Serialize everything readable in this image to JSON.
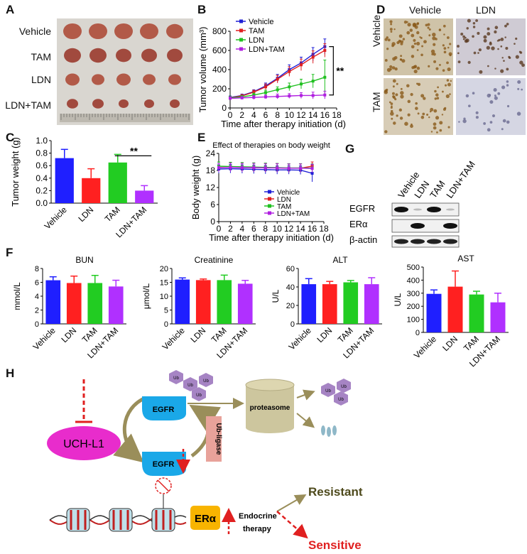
{
  "panel_letters": {
    "A": "A",
    "B": "B",
    "C": "C",
    "D": "D",
    "E": "E",
    "F": "F",
    "G": "G",
    "H": "H"
  },
  "panelA": {
    "row_labels": [
      "Vehicle",
      "TAM",
      "LDN",
      "LDN+TAM"
    ]
  },
  "panelD": {
    "col_labels": [
      "Vehicle",
      "LDN"
    ],
    "row_labels": [
      "Vehicle",
      "TAM"
    ]
  },
  "panelG": {
    "col_labels": [
      "Vehicle",
      "LDN",
      "TAM",
      "LDN+TAM"
    ],
    "row_labels": [
      "EGFR",
      "ERα",
      "β-actin"
    ]
  },
  "panelH": {
    "uch": "UCH-L1",
    "egfr_top": "EGFR",
    "egfr_bottom": "EGFR",
    "ub_ligase": "Ub-ligase",
    "proteasome": "proteasome",
    "ub": "Ub",
    "era": "ERα",
    "endocrine_1": "Endocrine",
    "endocrine_2": "therapy",
    "resistant": "Resistant",
    "sensitive": "Sensitive"
  },
  "chart_data": [
    {
      "id": "B",
      "type": "line",
      "title": "",
      "xlabel": "Time after therapy initiation (d)",
      "ylabel": "Tumor volume (mm³)",
      "xlim": [
        0,
        18
      ],
      "ylim": [
        0,
        800
      ],
      "xticks": [
        0,
        2,
        4,
        6,
        8,
        10,
        12,
        14,
        16,
        18
      ],
      "yticks": [
        0,
        200,
        400,
        600,
        800
      ],
      "x": [
        0,
        2,
        4,
        6,
        8,
        10,
        12,
        14,
        16
      ],
      "series": [
        {
          "name": "Vehicle",
          "color": "#1f1fd6",
          "values": [
            110,
            130,
            170,
            230,
            310,
            400,
            470,
            560,
            640
          ],
          "err": [
            15,
            15,
            20,
            30,
            40,
            50,
            60,
            70,
            80
          ]
        },
        {
          "name": "TAM",
          "color": "#e02020",
          "values": [
            105,
            125,
            165,
            220,
            300,
            380,
            450,
            530,
            600
          ],
          "err": [
            15,
            15,
            20,
            30,
            40,
            50,
            60,
            65,
            70
          ]
        },
        {
          "name": "LDN",
          "color": "#20c020",
          "values": [
            105,
            115,
            135,
            160,
            190,
            220,
            250,
            280,
            320
          ],
          "err": [
            15,
            15,
            20,
            25,
            30,
            40,
            50,
            70,
            180
          ]
        },
        {
          "name": "LDN+TAM",
          "color": "#b020e0",
          "values": [
            100,
            105,
            110,
            115,
            120,
            125,
            130,
            130,
            135
          ],
          "err": [
            15,
            15,
            20,
            20,
            25,
            25,
            30,
            35,
            40
          ]
        }
      ],
      "annotation": "**"
    },
    {
      "id": "C",
      "type": "bar",
      "title": "",
      "xlabel": "",
      "ylabel": "Tumor weight (g)",
      "ylim": [
        0,
        1.0
      ],
      "yticks": [
        0.0,
        0.2,
        0.4,
        0.6,
        0.8,
        1.0
      ],
      "categories": [
        "Vehicle",
        "LDN",
        "TAM",
        "LDN+TAM"
      ],
      "values": [
        0.72,
        0.4,
        0.65,
        0.2
      ],
      "err": [
        0.14,
        0.15,
        0.13,
        0.08
      ],
      "colors": [
        "#1f1fff",
        "#ff2020",
        "#22cc22",
        "#b030ff"
      ],
      "annotation": "**"
    },
    {
      "id": "E",
      "type": "line",
      "title": "Effect of therapies on body weight",
      "xlabel": "Time after therapy initiation (d)",
      "ylabel": "Body weight (g)",
      "xlim": [
        0,
        18
      ],
      "ylim": [
        0,
        24
      ],
      "xticks": [
        0,
        2,
        4,
        6,
        8,
        10,
        12,
        14,
        16,
        18
      ],
      "yticks": [
        0,
        6,
        12,
        18,
        24
      ],
      "x": [
        0,
        2,
        4,
        6,
        8,
        10,
        12,
        14,
        16
      ],
      "series": [
        {
          "name": "Vehicle",
          "color": "#1f1fd6",
          "values": [
            18.5,
            18.6,
            18.5,
            18.4,
            18.3,
            18.2,
            18.2,
            18.1,
            17.0
          ],
          "err": [
            1.5,
            1.5,
            1.5,
            1.5,
            1.5,
            1.5,
            1.5,
            1.5,
            3
          ]
        },
        {
          "name": "LDN",
          "color": "#e02020",
          "values": [
            19.0,
            19.2,
            19.1,
            19.0,
            19.0,
            18.9,
            18.8,
            18.8,
            19.5
          ],
          "err": [
            1.5,
            1.5,
            1.5,
            1.5,
            1.5,
            1.5,
            1.5,
            1.5,
            1.5
          ]
        },
        {
          "name": "TAM",
          "color": "#20c020",
          "values": [
            19.5,
            19.4,
            19.3,
            19.2,
            19.1,
            19.0,
            18.9,
            18.9,
            18.8
          ],
          "err": [
            1.5,
            1.5,
            1.5,
            1.5,
            1.5,
            1.5,
            1.5,
            1.5,
            1.5
          ]
        },
        {
          "name": "LDN+TAM",
          "color": "#b020e0",
          "values": [
            19.0,
            19.1,
            19.0,
            19.0,
            18.9,
            18.9,
            18.8,
            18.8,
            18.7
          ],
          "err": [
            1.5,
            1.5,
            1.5,
            1.5,
            1.5,
            1.5,
            1.5,
            1.5,
            1.5
          ]
        }
      ]
    },
    {
      "id": "F1",
      "type": "bar",
      "title": "BUN",
      "ylabel": "mmol/L",
      "ylim": [
        0,
        8
      ],
      "yticks": [
        0,
        2,
        4,
        6,
        8
      ],
      "categories": [
        "Vehicle",
        "LDN",
        "TAM",
        "LDN+TAM"
      ],
      "values": [
        6.3,
        5.9,
        5.9,
        5.4
      ],
      "err": [
        0.5,
        1.0,
        1.1,
        0.9
      ],
      "colors": [
        "#1f1fff",
        "#ff2020",
        "#22cc22",
        "#b030ff"
      ]
    },
    {
      "id": "F2",
      "type": "bar",
      "title": "Creatinine",
      "ylabel": "μmol/L",
      "ylim": [
        0,
        20
      ],
      "yticks": [
        0,
        5,
        10,
        15,
        20
      ],
      "categories": [
        "Vehicle",
        "LDN",
        "TAM",
        "LDN+TAM"
      ],
      "values": [
        16.0,
        15.8,
        15.8,
        14.5
      ],
      "err": [
        0.6,
        0.4,
        1.8,
        1.2
      ],
      "colors": [
        "#1f1fff",
        "#ff2020",
        "#22cc22",
        "#b030ff"
      ]
    },
    {
      "id": "F3",
      "type": "bar",
      "title": "ALT",
      "ylabel": "U/L",
      "ylim": [
        0,
        60
      ],
      "yticks": [
        0,
        20,
        40,
        60
      ],
      "categories": [
        "Vehicle",
        "LDN",
        "TAM",
        "LDN+TAM"
      ],
      "values": [
        43,
        43,
        45,
        43
      ],
      "err": [
        6,
        3,
        2,
        7
      ],
      "colors": [
        "#1f1fff",
        "#ff2020",
        "#22cc22",
        "#b030ff"
      ]
    },
    {
      "id": "F4",
      "type": "bar",
      "title": "AST",
      "ylabel": "U/L",
      "ylim": [
        0,
        500
      ],
      "yticks": [
        0,
        100,
        200,
        300,
        400,
        500
      ],
      "categories": [
        "Vehicle",
        "LDN",
        "TAM",
        "LDN+TAM"
      ],
      "values": [
        295,
        350,
        290,
        230
      ],
      "err": [
        30,
        120,
        25,
        70
      ],
      "colors": [
        "#1f1fff",
        "#ff2020",
        "#22cc22",
        "#b030ff"
      ]
    }
  ]
}
